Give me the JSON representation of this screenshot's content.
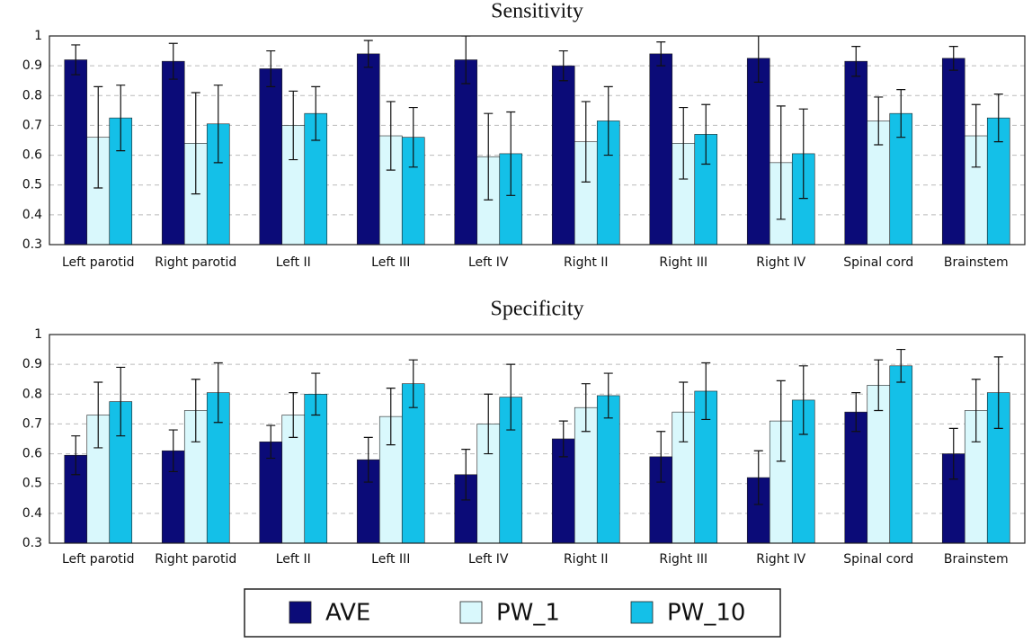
{
  "chart_data": [
    {
      "type": "bar",
      "title": "Sensitivity",
      "categories": [
        "Left parotid",
        "Right parotid",
        "Left II",
        "Left III",
        "Left IV",
        "Right II",
        "Right III",
        "Right IV",
        "Spinal cord",
        "Brainstem"
      ],
      "series": [
        {
          "name": "AVE",
          "color": "#0b0b78",
          "values": [
            0.92,
            0.915,
            0.89,
            0.94,
            0.92,
            0.9,
            0.94,
            0.925,
            0.915,
            0.925
          ],
          "errors": [
            0.05,
            0.06,
            0.06,
            0.045,
            0.08,
            0.05,
            0.04,
            0.08,
            0.05,
            0.04
          ]
        },
        {
          "name": "PW_1",
          "color": "#d9f8fc",
          "values": [
            0.66,
            0.64,
            0.7,
            0.665,
            0.595,
            0.645,
            0.64,
            0.575,
            0.715,
            0.665
          ],
          "errors": [
            0.17,
            0.17,
            0.115,
            0.115,
            0.145,
            0.135,
            0.12,
            0.19,
            0.08,
            0.105
          ]
        },
        {
          "name": "PW_10",
          "color": "#14c0e8",
          "values": [
            0.725,
            0.705,
            0.74,
            0.66,
            0.605,
            0.715,
            0.67,
            0.605,
            0.74,
            0.725
          ],
          "errors": [
            0.11,
            0.13,
            0.09,
            0.1,
            0.14,
            0.115,
            0.1,
            0.15,
            0.08,
            0.08
          ]
        }
      ],
      "ylim": [
        0.3,
        1
      ],
      "yticks": [
        0.3,
        0.4,
        0.5,
        0.6,
        0.7,
        0.8,
        0.9,
        1
      ],
      "grid": true
    },
    {
      "type": "bar",
      "title": "Specificity",
      "categories": [
        "Left parotid",
        "Right parotid",
        "Left II",
        "Left III",
        "Left IV",
        "Right II",
        "Right III",
        "Right IV",
        "Spinal cord",
        "Brainstem"
      ],
      "series": [
        {
          "name": "AVE",
          "color": "#0b0b78",
          "values": [
            0.595,
            0.61,
            0.64,
            0.58,
            0.53,
            0.65,
            0.59,
            0.52,
            0.74,
            0.6
          ],
          "errors": [
            0.065,
            0.07,
            0.055,
            0.075,
            0.085,
            0.06,
            0.085,
            0.09,
            0.065,
            0.085
          ]
        },
        {
          "name": "PW_1",
          "color": "#d9f8fc",
          "values": [
            0.73,
            0.745,
            0.73,
            0.725,
            0.7,
            0.755,
            0.74,
            0.71,
            0.83,
            0.745
          ],
          "errors": [
            0.11,
            0.105,
            0.075,
            0.095,
            0.1,
            0.08,
            0.1,
            0.135,
            0.085,
            0.105
          ]
        },
        {
          "name": "PW_10",
          "color": "#14c0e8",
          "values": [
            0.775,
            0.805,
            0.8,
            0.835,
            0.79,
            0.795,
            0.81,
            0.78,
            0.895,
            0.805
          ],
          "errors": [
            0.115,
            0.1,
            0.07,
            0.08,
            0.11,
            0.075,
            0.095,
            0.115,
            0.055,
            0.12
          ]
        }
      ],
      "ylim": [
        0.3,
        1
      ],
      "yticks": [
        0.3,
        0.4,
        0.5,
        0.6,
        0.7,
        0.8,
        0.9,
        1
      ],
      "grid": true
    }
  ]
}
